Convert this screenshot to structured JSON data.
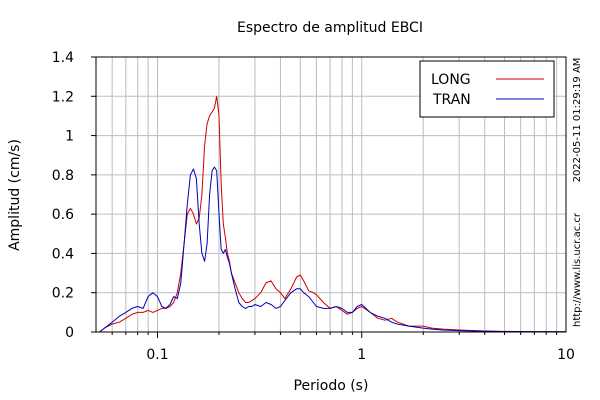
{
  "chart_data": {
    "type": "line",
    "title": "Espectro de amplitud EBCI",
    "xlabel": "Periodo (s)",
    "ylabel": "Amplitud (cm/s)",
    "x_scale": "log",
    "xlim": [
      0.05,
      10
    ],
    "ylim": [
      0,
      1.4
    ],
    "x_ticks": [
      0.1,
      1,
      10
    ],
    "x_tick_labels": [
      "0.1",
      "1",
      "10"
    ],
    "y_ticks": [
      0,
      0.2,
      0.4,
      0.6,
      0.8,
      1,
      1.2,
      1.4
    ],
    "y_tick_labels": [
      "0",
      "0.2",
      "0.4",
      "0.6",
      "0.8",
      "1",
      "1.2",
      "1.4"
    ],
    "grid": true,
    "legend_position": "top-right",
    "side_labels": [
      "2022-05-11 01:29:19 AM",
      "http://www.lis.ucr.ac.cr"
    ],
    "series": [
      {
        "name": "LONG",
        "color": "#cc0000",
        "x": [
          0.052,
          0.055,
          0.06,
          0.065,
          0.07,
          0.075,
          0.08,
          0.085,
          0.09,
          0.095,
          0.1,
          0.105,
          0.11,
          0.115,
          0.12,
          0.125,
          0.13,
          0.135,
          0.14,
          0.145,
          0.15,
          0.155,
          0.16,
          0.165,
          0.17,
          0.175,
          0.18,
          0.185,
          0.19,
          0.195,
          0.2,
          0.205,
          0.21,
          0.215,
          0.22,
          0.225,
          0.23,
          0.24,
          0.25,
          0.26,
          0.27,
          0.28,
          0.29,
          0.3,
          0.32,
          0.34,
          0.36,
          0.38,
          0.4,
          0.42,
          0.45,
          0.48,
          0.5,
          0.52,
          0.55,
          0.58,
          0.6,
          0.65,
          0.7,
          0.75,
          0.8,
          0.85,
          0.9,
          0.95,
          1.0,
          1.1,
          1.2,
          1.3,
          1.4,
          1.5,
          1.7,
          2.0,
          2.2,
          2.5,
          3.0,
          4.0,
          5.0,
          7.0,
          10.0
        ],
        "y": [
          0.0,
          0.02,
          0.04,
          0.05,
          0.07,
          0.09,
          0.1,
          0.1,
          0.11,
          0.1,
          0.11,
          0.12,
          0.12,
          0.13,
          0.15,
          0.2,
          0.3,
          0.45,
          0.6,
          0.63,
          0.6,
          0.55,
          0.58,
          0.7,
          0.95,
          1.06,
          1.1,
          1.12,
          1.14,
          1.2,
          1.1,
          0.75,
          0.55,
          0.48,
          0.4,
          0.36,
          0.3,
          0.25,
          0.2,
          0.17,
          0.15,
          0.15,
          0.16,
          0.17,
          0.2,
          0.25,
          0.26,
          0.22,
          0.2,
          0.17,
          0.22,
          0.28,
          0.29,
          0.26,
          0.21,
          0.2,
          0.19,
          0.15,
          0.12,
          0.13,
          0.11,
          0.09,
          0.1,
          0.12,
          0.13,
          0.1,
          0.07,
          0.06,
          0.07,
          0.05,
          0.03,
          0.03,
          0.02,
          0.015,
          0.01,
          0.005,
          0.003,
          0.002,
          0.001
        ]
      },
      {
        "name": "TRAN",
        "color": "#0000bb",
        "x": [
          0.052,
          0.055,
          0.06,
          0.065,
          0.07,
          0.075,
          0.08,
          0.085,
          0.09,
          0.095,
          0.1,
          0.105,
          0.11,
          0.115,
          0.12,
          0.125,
          0.13,
          0.135,
          0.14,
          0.145,
          0.15,
          0.155,
          0.16,
          0.165,
          0.17,
          0.175,
          0.18,
          0.185,
          0.19,
          0.195,
          0.2,
          0.205,
          0.21,
          0.215,
          0.22,
          0.225,
          0.23,
          0.24,
          0.25,
          0.26,
          0.27,
          0.28,
          0.29,
          0.3,
          0.32,
          0.34,
          0.36,
          0.38,
          0.4,
          0.42,
          0.45,
          0.48,
          0.5,
          0.52,
          0.55,
          0.58,
          0.6,
          0.65,
          0.7,
          0.75,
          0.8,
          0.85,
          0.9,
          0.95,
          1.0,
          1.1,
          1.2,
          1.3,
          1.4,
          1.5,
          1.7,
          2.0,
          2.2,
          2.5,
          3.0,
          4.0,
          5.0,
          7.0,
          10.0
        ],
        "y": [
          0.0,
          0.02,
          0.05,
          0.08,
          0.1,
          0.12,
          0.13,
          0.12,
          0.18,
          0.2,
          0.18,
          0.13,
          0.12,
          0.14,
          0.18,
          0.17,
          0.25,
          0.45,
          0.65,
          0.8,
          0.83,
          0.78,
          0.55,
          0.4,
          0.36,
          0.45,
          0.7,
          0.82,
          0.84,
          0.82,
          0.6,
          0.42,
          0.4,
          0.42,
          0.38,
          0.35,
          0.3,
          0.22,
          0.15,
          0.13,
          0.12,
          0.13,
          0.13,
          0.14,
          0.13,
          0.15,
          0.14,
          0.12,
          0.13,
          0.16,
          0.2,
          0.22,
          0.22,
          0.2,
          0.18,
          0.15,
          0.13,
          0.12,
          0.12,
          0.13,
          0.12,
          0.1,
          0.1,
          0.13,
          0.14,
          0.1,
          0.08,
          0.07,
          0.05,
          0.04,
          0.03,
          0.02,
          0.015,
          0.01,
          0.007,
          0.004,
          0.002,
          0.001,
          0.001
        ]
      }
    ]
  }
}
